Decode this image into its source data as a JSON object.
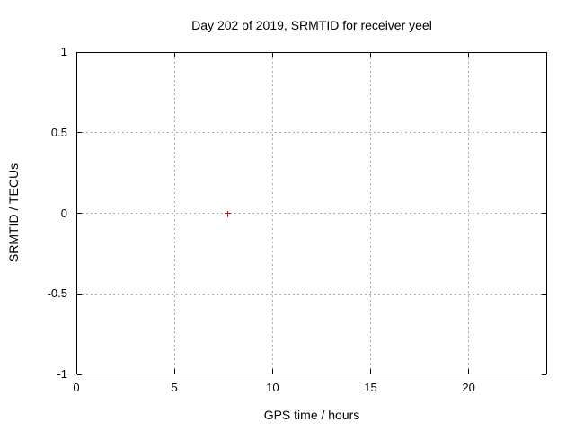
{
  "chart_data": {
    "type": "scatter",
    "title": "Day 202 of 2019, SRMTID for receiver yeel",
    "xlabel": "GPS time / hours",
    "ylabel": "SRMTID / TECUs",
    "xlim": [
      0,
      24
    ],
    "ylim": [
      -1,
      1
    ],
    "xticks": [
      0,
      5,
      10,
      15,
      20
    ],
    "xtick_labels": [
      "0",
      "5",
      "10",
      "15",
      "20"
    ],
    "yticks": [
      -1,
      -0.5,
      0,
      0.5,
      1
    ],
    "ytick_labels": [
      "-1",
      "-0.5",
      "0",
      "0.5",
      "1"
    ],
    "grid": true,
    "legend": "none",
    "series": [
      {
        "name": "SRMTID",
        "marker": "plus",
        "color": "#ff0000",
        "points": [
          {
            "x": 7.7,
            "y": 0.0
          }
        ]
      }
    ]
  },
  "colors": {
    "background": "#ffffff",
    "border": "#000000",
    "grid": "#ababab",
    "text": "#000000",
    "marker": "#ff0000"
  }
}
